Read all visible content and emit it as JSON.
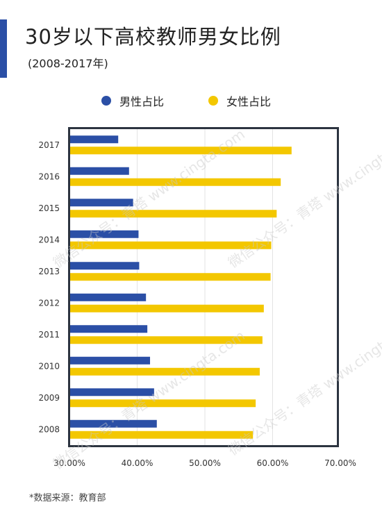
{
  "header": {
    "title": "30岁以下高校教师男女比例",
    "subtitle": "(2008-2017年)"
  },
  "footnote": "*数据来源：教育部",
  "watermarks": [
    "微信公众号：青塔 www.cingta.com",
    "微信公众号：青塔 www.cingta.com",
    "微信公众号：青塔 www.cingta.com",
    "微信公众号：青塔 www.cingta.com"
  ],
  "colors": {
    "male": "#2b4fa6",
    "female": "#f3c700",
    "accent": "#2b4fa6",
    "frame": "#2c3440"
  },
  "chart_data": {
    "type": "bar",
    "orientation": "horizontal",
    "categories": [
      "2017",
      "2016",
      "2015",
      "2014",
      "2013",
      "2012",
      "2011",
      "2010",
      "2009",
      "2008"
    ],
    "series": [
      {
        "name": "男性占比",
        "values": [
          37.2,
          38.8,
          39.4,
          40.2,
          40.3,
          41.3,
          41.5,
          41.9,
          42.5,
          42.9
        ]
      },
      {
        "name": "女性占比",
        "values": [
          62.8,
          61.2,
          60.6,
          59.8,
          59.7,
          58.7,
          58.5,
          58.1,
          57.5,
          57.1
        ]
      }
    ],
    "xlim": [
      30,
      70
    ],
    "x_ticks": [
      "30.00%",
      "40.00%",
      "50.00%",
      "60.00%",
      "70.00%"
    ],
    "x_tick_values": [
      30,
      40,
      50,
      60,
      70
    ],
    "grid": true,
    "legend_position": "top"
  }
}
